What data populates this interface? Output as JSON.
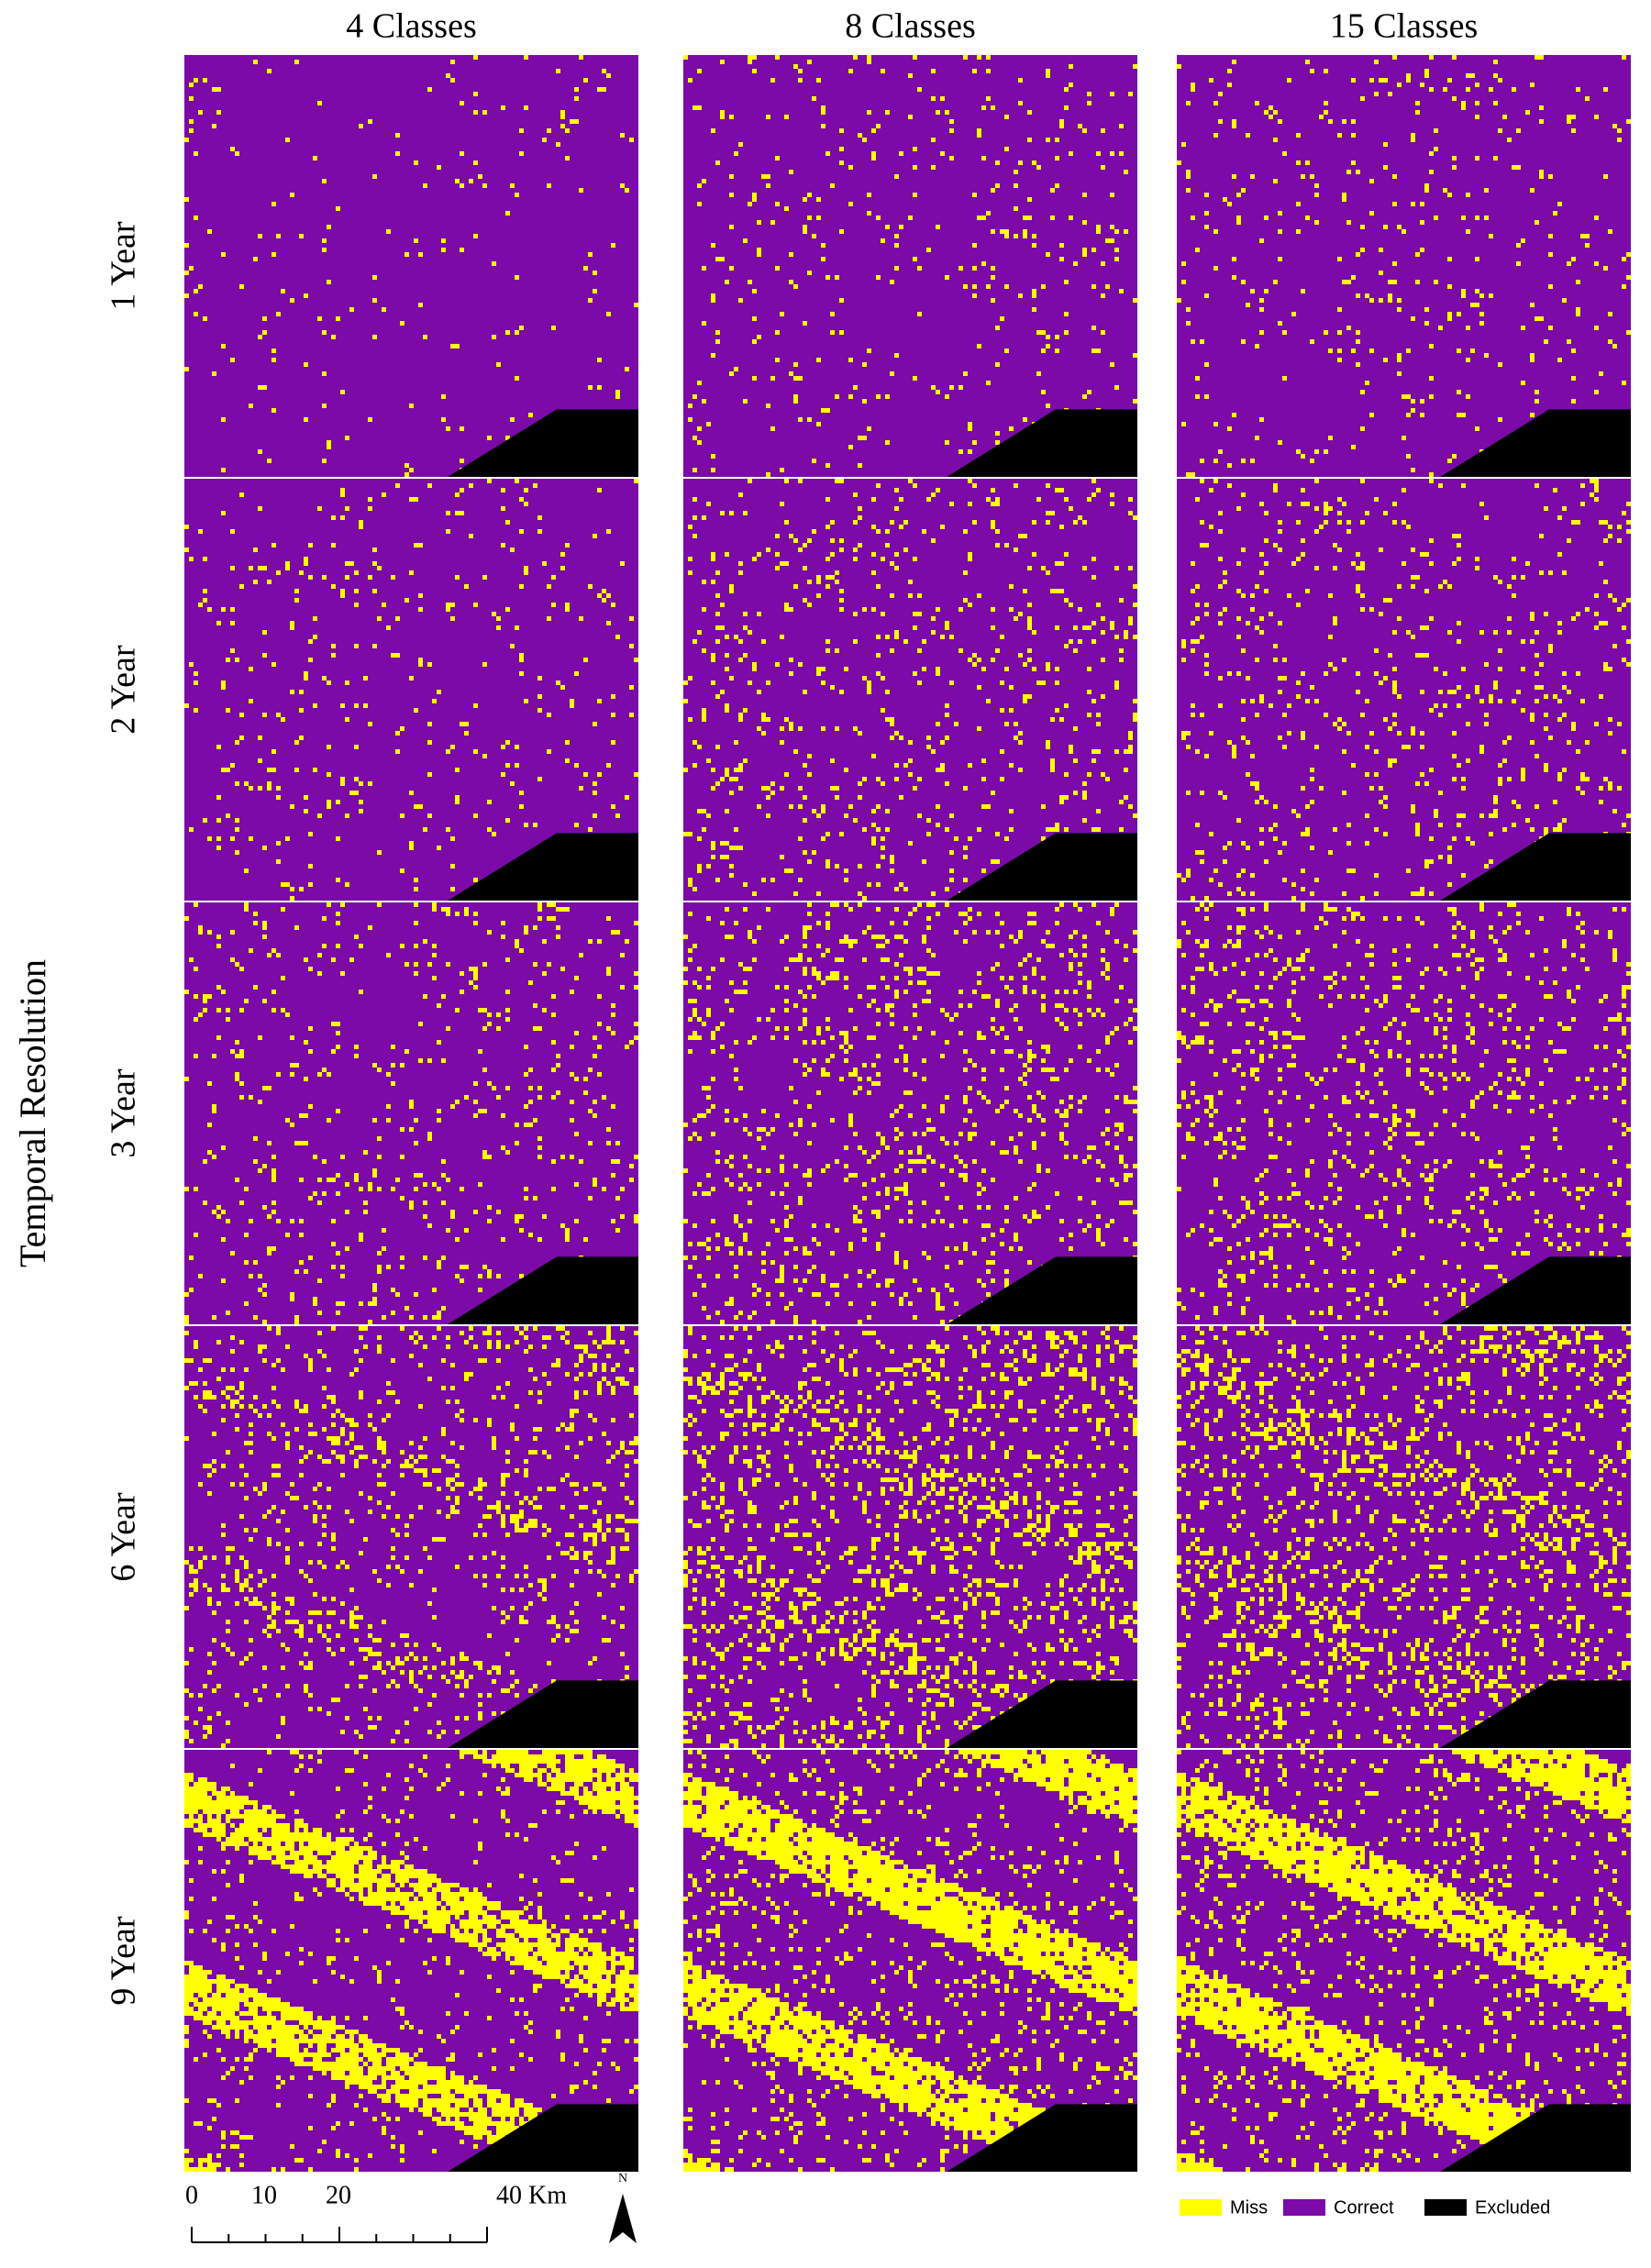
{
  "columns": [
    "4 Classes",
    "8 Classes",
    "15 Classes"
  ],
  "rows": [
    "1 Year",
    "2 Year",
    "3 Year",
    "6 Year",
    "9 Year"
  ],
  "row_axis_title": "Temporal Resolution",
  "scale_bar": {
    "labels": [
      "0",
      "10",
      "20",
      "40 Km"
    ]
  },
  "north_arrow": {
    "label": "N"
  },
  "legend": {
    "items": [
      {
        "label": "Miss",
        "color": "#ffff00"
      },
      {
        "label": "Correct",
        "color": "#7b0aa8"
      },
      {
        "label": "Excluded",
        "color": "#000000"
      }
    ]
  }
}
